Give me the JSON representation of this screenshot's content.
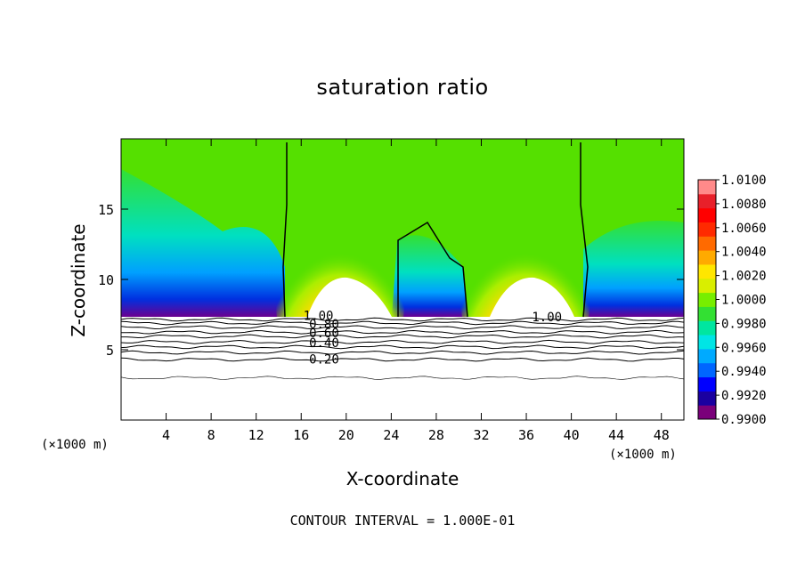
{
  "title": "saturation ratio",
  "footer": "CONTOUR INTERVAL = 1.000E-01",
  "chart_data": {
    "type": "heatmap",
    "title": "saturation ratio",
    "xlabel": "X-coordinate",
    "ylabel": "Z-coordinate",
    "x_unit": "(×1000 m)",
    "z_unit": "(×1000 m)",
    "xlim": [
      0,
      50
    ],
    "ylim": [
      0,
      20
    ],
    "x_ticks": [
      4,
      8,
      12,
      16,
      20,
      24,
      28,
      32,
      36,
      40,
      44,
      48
    ],
    "y_ticks": [
      5,
      10,
      15
    ],
    "colorbar": {
      "labels": [
        "1.0100",
        "1.0080",
        "1.0060",
        "1.0040",
        "1.0020",
        "1.0000",
        "0.9980",
        "0.9960",
        "0.9940",
        "0.9920",
        "0.9900"
      ],
      "min": 0.99,
      "max": 1.01,
      "colors": [
        "#7a007a",
        "#1a00a0",
        "#0000ff",
        "#0066ff",
        "#00aaff",
        "#00e5e5",
        "#00e6a0",
        "#33e033",
        "#77ee00",
        "#d9ee00",
        "#ffe600",
        "#ffaa00",
        "#ff6a00",
        "#ff2a00",
        "#ff0000",
        "#e8202a",
        "#ff8a8a"
      ]
    },
    "contour_labels": [
      "1.00",
      "0.80",
      "0.60",
      "0.40",
      "0.20"
    ],
    "contour_levels": [
      0.2,
      0.4,
      0.6,
      0.8,
      1.0
    ],
    "contour_interval": "1.000E-01"
  },
  "icons": {}
}
